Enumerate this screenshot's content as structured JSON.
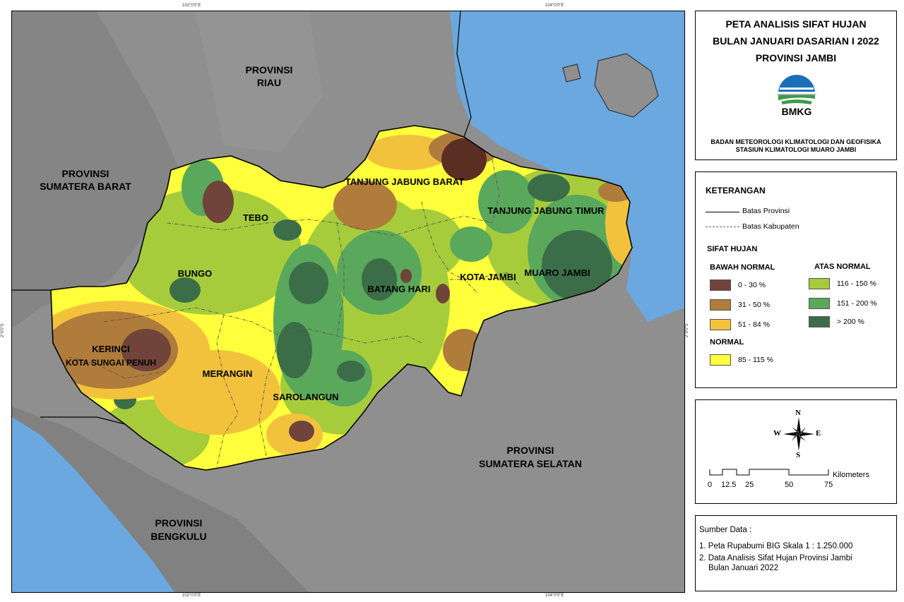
{
  "title": {
    "line1": "PETA ANALISIS SIFAT HUJAN",
    "line2": "BULAN JANUARI DASARIAN I 2022",
    "line3": "PROVINSI JAMBI"
  },
  "logo": {
    "text": "BMKG",
    "icon": "bmkg-logo"
  },
  "agency": {
    "line1": "BADAN METEOROLOGI KLIMATOLOGI DAN GEOFISIKA",
    "line2": "STASIUN KLIMATOLOGI MUARO JAMBI"
  },
  "legend": {
    "heading": "KETERANGAN",
    "lines": [
      {
        "label": "Batas Provinsi"
      },
      {
        "label": "Batas Kabupaten"
      }
    ],
    "sifat_heading": "SIFAT HUJAN",
    "bawah_heading": "BAWAH NORMAL",
    "atas_heading": "ATAS NORMAL",
    "normal_heading": "NORMAL",
    "bawah": [
      {
        "label": "0 - 30 %",
        "color": "#70443a"
      },
      {
        "label": "31 - 50 %",
        "color": "#b07c3b"
      },
      {
        "label": "51 - 84 %",
        "color": "#f2c23d"
      }
    ],
    "normal": [
      {
        "label": "85 - 115 %",
        "color": "#ffff3b"
      }
    ],
    "atas": [
      {
        "label": "116 - 150 %",
        "color": "#a6cc3c"
      },
      {
        "label": "151 - 200 %",
        "color": "#5aa85b"
      },
      {
        "label": "> 200 %",
        "color": "#3b6e48"
      }
    ]
  },
  "compass": {
    "n": "N",
    "s": "S",
    "e": "E",
    "w": "W"
  },
  "scale": {
    "ticks": [
      "0",
      "12.5",
      "25",
      "50",
      "75"
    ],
    "unit": "Kilometers"
  },
  "source": {
    "heading": "Sumber Data :",
    "item1": "1. Peta Rupabumi BIG Skala 1 : 1.250.000",
    "item2a": "2. Data Analisis Sifat Hujan Provinsi Jambi",
    "item2b": "Bulan Januari 2022"
  },
  "coords": {
    "top_left": "102°0'0\"E",
    "top_right": "104°0'0\"E",
    "bottom_left": "102°0'0\"E",
    "bottom_right": "104°0'0\"E",
    "side_left": "2°0'0\"S",
    "side_right": "2°0'0\"S"
  },
  "map_labels": {
    "riau_1": "PROVINSI",
    "riau_2": "RIAU",
    "sumbar_1": "PROVINSI",
    "sumbar_2": "SUMATERA BARAT",
    "sumsel_1": "PROVINSI",
    "sumsel_2": "SUMATERA SELATAN",
    "bengkulu_1": "PROVINSI",
    "bengkulu_2": "BENGKULU",
    "tebo": "TEBO",
    "bungo": "BUNGO",
    "kerinci": "KERINCI",
    "sungai_penuh": "KOTA SUNGAI PENUH",
    "merangin": "MERANGIN",
    "sarolangun": "SAROLANGUN",
    "batang_hari": "BATANG HARI",
    "kota_jambi": "KOTA JAMBI",
    "muaro_jambi": "MUARO JAMBI",
    "tanjabbar": "TANJUNG JABUNG BARAT",
    "tanjabtim": "TANJUNG JABUNG TIMUR"
  },
  "colors": {
    "sea": "#6aa8df",
    "land": "#8f8f8f",
    "normal": "#ffff3b"
  }
}
